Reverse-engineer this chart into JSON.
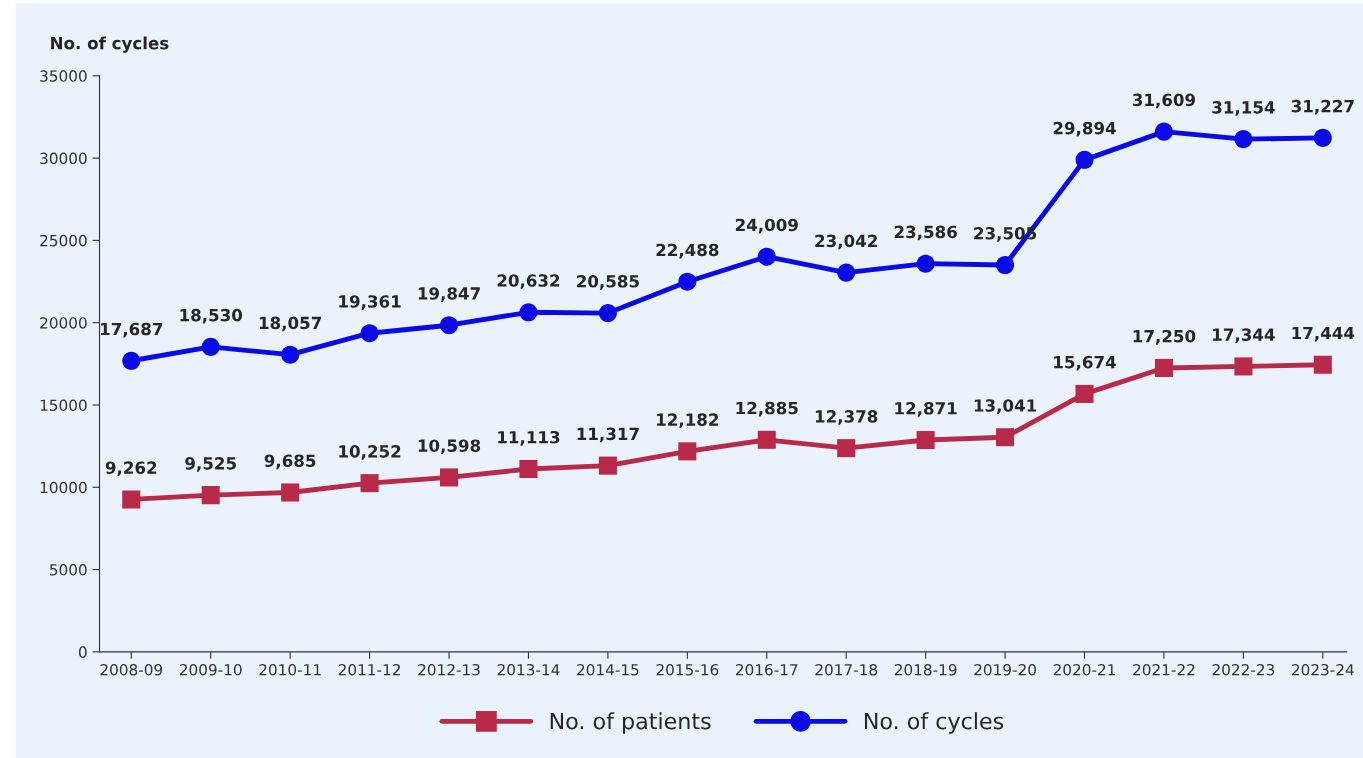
{
  "chart_data": {
    "type": "line",
    "ylabel": "No. of cycles",
    "categories": [
      "2008-09",
      "2009-10",
      "2010-11",
      "2011-12",
      "2012-13",
      "2013-14",
      "2014-15",
      "2015-16",
      "2016-17",
      "2017-18",
      "2018-19",
      "2019-20",
      "2020-21",
      "2021-22",
      "2022-23",
      "2023-24"
    ],
    "series": [
      {
        "name": "No. of patients",
        "color": "#b8294a",
        "marker": "square",
        "values": [
          9262,
          9525,
          9685,
          10252,
          10598,
          11113,
          11317,
          12182,
          12885,
          12378,
          12871,
          13041,
          15674,
          17250,
          17344,
          17444
        ],
        "value_labels": [
          "9,262",
          "9,525",
          "9,685",
          "10,252",
          "10,598",
          "11,113",
          "11,317",
          "12,182",
          "12,885",
          "12,378",
          "12,871",
          "13,041",
          "15,674",
          "17,250",
          "17,344",
          "17,444"
        ]
      },
      {
        "name": "No. of cycles",
        "color": "#0a0ae6",
        "marker": "circle",
        "values": [
          17687,
          18530,
          18057,
          19361,
          19847,
          20632,
          20585,
          22488,
          24009,
          23042,
          23586,
          23505,
          29894,
          31609,
          31154,
          31227
        ],
        "value_labels": [
          "17,687",
          "18,530",
          "18,057",
          "19,361",
          "19,847",
          "20,632",
          "20,585",
          "22,488",
          "24,009",
          "23,042",
          "23,586",
          "23,505",
          "29,894",
          "31,609",
          "31,154",
          "31,227"
        ]
      }
    ],
    "ylim": [
      0,
      35000
    ],
    "yticks": [
      0,
      5000,
      10000,
      15000,
      20000,
      25000,
      30000,
      35000
    ],
    "grid": false,
    "legend": "bottom",
    "line_style": "solid"
  }
}
